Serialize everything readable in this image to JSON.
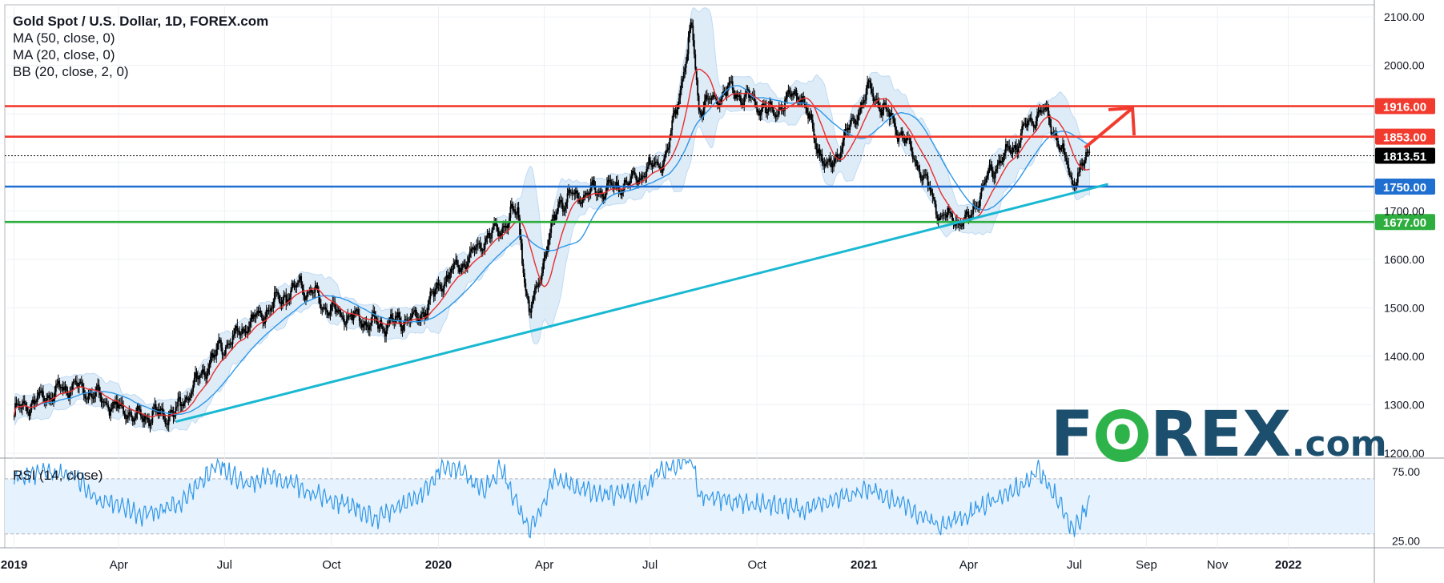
{
  "header": {
    "title": "Gold Spot / U.S. Dollar, 1D, FOREX.com",
    "indicators": [
      "MA (50, close, 0)",
      "MA (20, close, 0)",
      "BB (20, close, 2, 0)"
    ]
  },
  "rsi_label": "RSI (14, close)",
  "logo": {
    "left": "F",
    "o": "O",
    "right": "REX",
    "suffix": ".com"
  },
  "colors": {
    "resistance": "#f23b2f",
    "support_blue": "#1e6fd0",
    "support_green": "#2eae3e",
    "trendline": "#19b8d2",
    "ma20": "#e62e2e",
    "ma50": "#2f97e8",
    "bb_fill": "#dbeaf8",
    "candle": "#000000",
    "rsi": "#2f97e8",
    "last_price": "#000000"
  },
  "chart_data": [
    {
      "type": "line",
      "title": "Gold Spot / U.S. Dollar, 1D, FOREX.com",
      "x_axis": {
        "ticks": [
          "2019",
          "Apr",
          "Jul",
          "Oct",
          "2020",
          "Apr",
          "Jul",
          "Oct",
          "2021",
          "Apr",
          "Jul",
          "Sep",
          "Nov",
          "2022"
        ]
      },
      "y_axis": {
        "ticks": [
          "1200.00",
          "1300.00",
          "1400.00",
          "1500.00",
          "1600.00",
          "1700.00",
          "1800.00",
          "1900.00",
          "2000.00",
          "2100.00"
        ],
        "range": [
          1190,
          2125
        ]
      },
      "price_series": {
        "x": [
          "2019-01-01",
          "2019-02-20",
          "2019-04-15",
          "2019-05-20",
          "2019-06-25",
          "2019-08-05",
          "2019-09-05",
          "2019-10-01",
          "2019-11-10",
          "2019-12-15",
          "2020-01-07",
          "2020-02-24",
          "2020-03-09",
          "2020-03-19",
          "2020-04-14",
          "2020-05-15",
          "2020-06-15",
          "2020-07-15",
          "2020-08-06",
          "2020-08-12",
          "2020-09-10",
          "2020-10-15",
          "2020-11-06",
          "2020-11-30",
          "2021-01-06",
          "2021-02-10",
          "2021-03-08",
          "2021-03-31",
          "2021-04-20",
          "2021-05-15",
          "2021-06-01",
          "2021-06-15",
          "2021-06-29",
          "2021-07-14"
        ],
        "y": [
          1285,
          1342,
          1275,
          1283,
          1410,
          1495,
          1550,
          1490,
          1465,
          1480,
          1560,
          1670,
          1700,
          1480,
          1720,
          1740,
          1760,
          1810,
          2075,
          1915,
          1950,
          1900,
          1950,
          1780,
          1950,
          1830,
          1690,
          1678,
          1780,
          1850,
          1912,
          1860,
          1760,
          1815
        ]
      },
      "horizontal_levels": [
        {
          "value": 1916.0,
          "label": "1916.00",
          "color": "#f23b2f"
        },
        {
          "value": 1853.0,
          "label": "1853.00",
          "color": "#f23b2f"
        },
        {
          "value": 1813.51,
          "label": "1813.51",
          "color": "#000000",
          "style": "dotted"
        },
        {
          "value": 1750.0,
          "label": "1750.00",
          "color": "#1e6fd0"
        },
        {
          "value": 1677.0,
          "label": "1677.00",
          "color": "#2eae3e"
        }
      ],
      "trendline": {
        "from": [
          "2019-05-20",
          1265
        ],
        "to": [
          "2021-07-30",
          1755
        ]
      },
      "projection_arrow": {
        "from": [
          "2021-07-10",
          1830
        ],
        "to": [
          "2021-08-20",
          1912
        ]
      },
      "indicators": [
        "MA (50, close, 0)",
        "MA (20, close, 0)",
        "BB (20, close, 2, 0)"
      ]
    },
    {
      "type": "line",
      "title": "RSI (14, close)",
      "y_axis": {
        "ticks": [
          "75.00",
          "25.00"
        ],
        "range": [
          20,
          85
        ]
      },
      "band": [
        30,
        70
      ],
      "series": {
        "x": [
          "2019-01-01",
          "2019-01-25",
          "2019-02-20",
          "2019-03-15",
          "2019-04-20",
          "2019-05-25",
          "2019-06-25",
          "2019-07-20",
          "2019-08-10",
          "2019-09-20",
          "2019-11-10",
          "2019-12-20",
          "2020-01-07",
          "2020-02-10",
          "2020-02-24",
          "2020-03-19",
          "2020-04-10",
          "2020-05-20",
          "2020-06-20",
          "2020-07-15",
          "2020-08-06",
          "2020-08-12",
          "2020-09-20",
          "2020-11-10",
          "2020-12-20",
          "2021-01-06",
          "2021-02-10",
          "2021-03-08",
          "2021-04-01",
          "2021-05-10",
          "2021-06-01",
          "2021-06-20",
          "2021-06-29",
          "2021-07-14"
        ],
        "y": [
          70,
          74,
          73,
          55,
          44,
          52,
          80,
          65,
          72,
          58,
          42,
          60,
          82,
          62,
          78,
          32,
          70,
          58,
          60,
          78,
          85,
          58,
          52,
          48,
          58,
          62,
          48,
          35,
          45,
          62,
          76,
          52,
          32,
          52
        ]
      }
    }
  ]
}
